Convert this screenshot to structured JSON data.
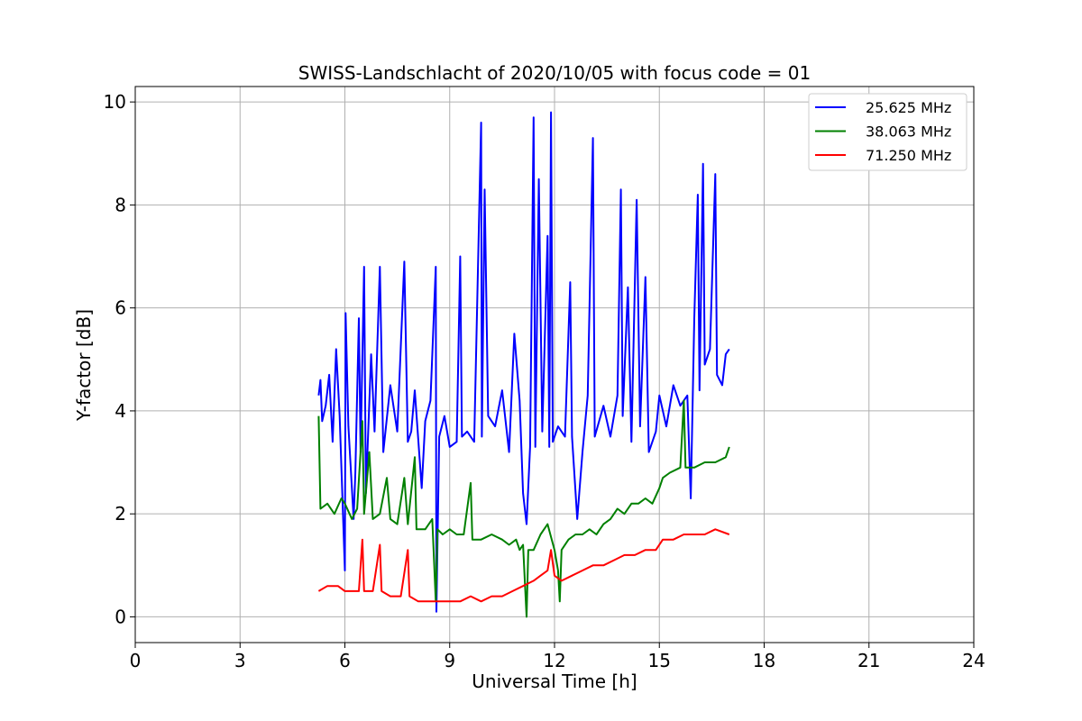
{
  "chart_data": {
    "type": "line",
    "title": "SWISS-Landschlacht of 2020/10/05 with focus code = 01",
    "xlabel": "Universal Time [h]",
    "ylabel": "Y-factor [dB]",
    "xlim": [
      0,
      24
    ],
    "ylim": [
      -0.5,
      10.3
    ],
    "xticks": [
      0,
      3,
      6,
      9,
      12,
      15,
      18,
      21,
      24
    ],
    "yticks": [
      0,
      2,
      4,
      6,
      8,
      10
    ],
    "grid": true,
    "legend_position": "top-right",
    "series": [
      {
        "name": "25.625 MHz",
        "color": "#0000ff",
        "points": [
          [
            5.25,
            4.3
          ],
          [
            5.3,
            4.6
          ],
          [
            5.35,
            3.8
          ],
          [
            5.45,
            4.1
          ],
          [
            5.55,
            4.7
          ],
          [
            5.65,
            3.4
          ],
          [
            5.75,
            5.2
          ],
          [
            5.85,
            3.9
          ],
          [
            6.0,
            0.9
          ],
          [
            6.02,
            5.9
          ],
          [
            6.1,
            3.7
          ],
          [
            6.25,
            1.9
          ],
          [
            6.3,
            2.8
          ],
          [
            6.4,
            5.8
          ],
          [
            6.45,
            3.2
          ],
          [
            6.55,
            6.8
          ],
          [
            6.6,
            2.4
          ],
          [
            6.75,
            5.1
          ],
          [
            6.85,
            3.6
          ],
          [
            7.0,
            6.8
          ],
          [
            7.1,
            3.2
          ],
          [
            7.3,
            4.5
          ],
          [
            7.5,
            3.6
          ],
          [
            7.7,
            6.9
          ],
          [
            7.8,
            3.4
          ],
          [
            7.9,
            3.6
          ],
          [
            8.0,
            4.4
          ],
          [
            8.2,
            2.5
          ],
          [
            8.3,
            3.8
          ],
          [
            8.45,
            4.2
          ],
          [
            8.6,
            6.8
          ],
          [
            8.62,
            0.1
          ],
          [
            8.7,
            3.5
          ],
          [
            8.85,
            3.9
          ],
          [
            9.0,
            3.3
          ],
          [
            9.2,
            3.4
          ],
          [
            9.3,
            7.0
          ],
          [
            9.35,
            3.5
          ],
          [
            9.5,
            3.6
          ],
          [
            9.7,
            3.4
          ],
          [
            9.9,
            9.6
          ],
          [
            9.92,
            3.5
          ],
          [
            10.0,
            8.3
          ],
          [
            10.1,
            3.9
          ],
          [
            10.3,
            3.7
          ],
          [
            10.5,
            4.4
          ],
          [
            10.7,
            3.2
          ],
          [
            10.85,
            5.5
          ],
          [
            11.0,
            4.2
          ],
          [
            11.1,
            2.4
          ],
          [
            11.2,
            1.8
          ],
          [
            11.3,
            3.3
          ],
          [
            11.4,
            9.7
          ],
          [
            11.45,
            3.3
          ],
          [
            11.55,
            8.5
          ],
          [
            11.65,
            3.6
          ],
          [
            11.8,
            7.4
          ],
          [
            11.85,
            3.3
          ],
          [
            11.9,
            9.8
          ],
          [
            11.95,
            3.4
          ],
          [
            12.1,
            3.7
          ],
          [
            12.3,
            3.5
          ],
          [
            12.45,
            6.5
          ],
          [
            12.5,
            3.5
          ],
          [
            12.65,
            1.9
          ],
          [
            12.8,
            3.2
          ],
          [
            12.95,
            4.3
          ],
          [
            13.1,
            9.3
          ],
          [
            13.15,
            3.5
          ],
          [
            13.4,
            4.1
          ],
          [
            13.6,
            3.5
          ],
          [
            13.8,
            4.3
          ],
          [
            13.9,
            8.3
          ],
          [
            13.95,
            3.9
          ],
          [
            14.1,
            6.4
          ],
          [
            14.2,
            3.4
          ],
          [
            14.35,
            8.1
          ],
          [
            14.45,
            3.7
          ],
          [
            14.6,
            6.6
          ],
          [
            14.7,
            3.2
          ],
          [
            14.9,
            3.6
          ],
          [
            15.0,
            4.3
          ],
          [
            15.2,
            3.7
          ],
          [
            15.4,
            4.5
          ],
          [
            15.6,
            4.1
          ],
          [
            15.8,
            4.3
          ],
          [
            15.9,
            2.3
          ],
          [
            16.0,
            5.8
          ],
          [
            16.1,
            8.2
          ],
          [
            16.15,
            4.4
          ],
          [
            16.25,
            8.8
          ],
          [
            16.3,
            4.9
          ],
          [
            16.45,
            5.2
          ],
          [
            16.6,
            8.6
          ],
          [
            16.65,
            4.7
          ],
          [
            16.8,
            4.5
          ],
          [
            16.9,
            5.1
          ],
          [
            17.0,
            5.2
          ]
        ]
      },
      {
        "name": "38.063 MHz",
        "color": "#008000",
        "points": [
          [
            5.25,
            3.9
          ],
          [
            5.3,
            2.1
          ],
          [
            5.5,
            2.2
          ],
          [
            5.7,
            2.0
          ],
          [
            5.9,
            2.3
          ],
          [
            6.0,
            2.2
          ],
          [
            6.2,
            1.9
          ],
          [
            6.35,
            2.1
          ],
          [
            6.5,
            3.8
          ],
          [
            6.55,
            2.0
          ],
          [
            6.7,
            3.2
          ],
          [
            6.8,
            1.9
          ],
          [
            7.0,
            2.0
          ],
          [
            7.2,
            2.7
          ],
          [
            7.3,
            1.9
          ],
          [
            7.5,
            1.8
          ],
          [
            7.7,
            2.7
          ],
          [
            7.8,
            1.8
          ],
          [
            8.0,
            3.1
          ],
          [
            8.05,
            1.7
          ],
          [
            8.3,
            1.7
          ],
          [
            8.5,
            1.9
          ],
          [
            8.6,
            0.3
          ],
          [
            8.65,
            1.7
          ],
          [
            8.8,
            1.6
          ],
          [
            9.0,
            1.7
          ],
          [
            9.2,
            1.6
          ],
          [
            9.4,
            1.6
          ],
          [
            9.6,
            2.6
          ],
          [
            9.65,
            1.5
          ],
          [
            9.9,
            1.5
          ],
          [
            10.2,
            1.6
          ],
          [
            10.5,
            1.5
          ],
          [
            10.7,
            1.4
          ],
          [
            10.9,
            1.5
          ],
          [
            11.0,
            1.3
          ],
          [
            11.1,
            1.4
          ],
          [
            11.2,
            0.0
          ],
          [
            11.25,
            1.3
          ],
          [
            11.4,
            1.3
          ],
          [
            11.6,
            1.6
          ],
          [
            11.8,
            1.8
          ],
          [
            12.0,
            1.3
          ],
          [
            12.1,
            0.9
          ],
          [
            12.15,
            0.3
          ],
          [
            12.2,
            1.3
          ],
          [
            12.4,
            1.5
          ],
          [
            12.6,
            1.6
          ],
          [
            12.8,
            1.6
          ],
          [
            13.0,
            1.7
          ],
          [
            13.2,
            1.6
          ],
          [
            13.4,
            1.8
          ],
          [
            13.6,
            1.9
          ],
          [
            13.8,
            2.1
          ],
          [
            14.0,
            2.0
          ],
          [
            14.2,
            2.2
          ],
          [
            14.4,
            2.2
          ],
          [
            14.6,
            2.3
          ],
          [
            14.8,
            2.2
          ],
          [
            15.0,
            2.5
          ],
          [
            15.1,
            2.7
          ],
          [
            15.3,
            2.8
          ],
          [
            15.6,
            2.9
          ],
          [
            15.7,
            4.2
          ],
          [
            15.75,
            2.9
          ],
          [
            16.0,
            2.9
          ],
          [
            16.3,
            3.0
          ],
          [
            16.6,
            3.0
          ],
          [
            16.9,
            3.1
          ],
          [
            17.0,
            3.3
          ]
        ]
      },
      {
        "name": "71.250 MHz",
        "color": "#ff0000",
        "points": [
          [
            5.25,
            0.5
          ],
          [
            5.5,
            0.6
          ],
          [
            5.8,
            0.6
          ],
          [
            6.0,
            0.5
          ],
          [
            6.2,
            0.5
          ],
          [
            6.4,
            0.5
          ],
          [
            6.5,
            1.5
          ],
          [
            6.55,
            0.5
          ],
          [
            6.8,
            0.5
          ],
          [
            7.0,
            1.4
          ],
          [
            7.05,
            0.5
          ],
          [
            7.3,
            0.4
          ],
          [
            7.6,
            0.4
          ],
          [
            7.8,
            1.3
          ],
          [
            7.85,
            0.4
          ],
          [
            8.1,
            0.3
          ],
          [
            8.4,
            0.3
          ],
          [
            8.7,
            0.3
          ],
          [
            9.0,
            0.3
          ],
          [
            9.3,
            0.3
          ],
          [
            9.6,
            0.4
          ],
          [
            9.9,
            0.3
          ],
          [
            10.2,
            0.4
          ],
          [
            10.5,
            0.4
          ],
          [
            10.8,
            0.5
          ],
          [
            11.1,
            0.6
          ],
          [
            11.4,
            0.7
          ],
          [
            11.6,
            0.8
          ],
          [
            11.8,
            0.9
          ],
          [
            11.9,
            1.3
          ],
          [
            12.0,
            0.8
          ],
          [
            12.2,
            0.7
          ],
          [
            12.5,
            0.8
          ],
          [
            12.8,
            0.9
          ],
          [
            13.1,
            1.0
          ],
          [
            13.4,
            1.0
          ],
          [
            13.7,
            1.1
          ],
          [
            14.0,
            1.2
          ],
          [
            14.3,
            1.2
          ],
          [
            14.6,
            1.3
          ],
          [
            14.9,
            1.3
          ],
          [
            15.1,
            1.5
          ],
          [
            15.4,
            1.5
          ],
          [
            15.7,
            1.6
          ],
          [
            16.0,
            1.6
          ],
          [
            16.3,
            1.6
          ],
          [
            16.6,
            1.7
          ],
          [
            17.0,
            1.6
          ]
        ]
      }
    ]
  }
}
